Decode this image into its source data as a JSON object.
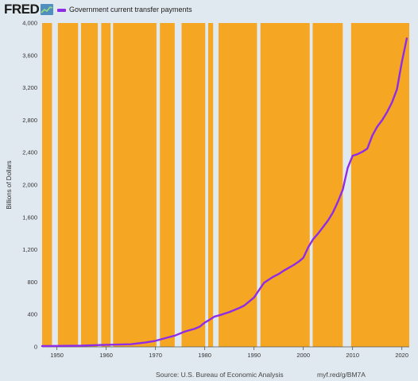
{
  "brand": {
    "logo_text": "FRED",
    "logo_icon": "line-chart-icon"
  },
  "colors": {
    "background": "#e1e9f0",
    "plot_bands": "#f5a623",
    "gap": "#e1e9f0",
    "series": "#8e2ce8"
  },
  "footer": {
    "source": "Source: U.S. Bureau of Economic Analysis",
    "shortlink": "myf.red/g/BM7A"
  },
  "chart_data": {
    "type": "line",
    "title": "",
    "xlabel": "",
    "ylabel": "Billions of Dollars",
    "xlim": [
      1947,
      2021.5
    ],
    "ylim": [
      0,
      4000
    ],
    "x_ticks": [
      "1950",
      "1960",
      "1970",
      "1980",
      "1990",
      "2000",
      "2010",
      "2020"
    ],
    "y_ticks": [
      "0",
      "400",
      "800",
      "1,200",
      "1,600",
      "2,000",
      "2,400",
      "2,800",
      "3,200",
      "3,600",
      "4,000"
    ],
    "legend": "top-left",
    "grid": false,
    "bands": [
      [
        1947.0,
        1949.0
      ],
      [
        1950.2,
        1954.3
      ],
      [
        1954.9,
        1958.3
      ],
      [
        1959.0,
        1960.9
      ],
      [
        1961.4,
        1970.2
      ],
      [
        1970.9,
        1973.9
      ],
      [
        1975.3,
        1980.1
      ],
      [
        1980.7,
        1981.7
      ],
      [
        1982.8,
        1990.6
      ],
      [
        1991.3,
        2001.3
      ],
      [
        2001.9,
        2008.0
      ],
      [
        2009.7,
        2021.5
      ]
    ],
    "series": [
      {
        "name": "Government current transfer payments",
        "x": [
          1947,
          1950,
          1955,
          1958,
          1960,
          1965,
          1968,
          1970,
          1972,
          1974,
          1976,
          1978,
          1979,
          1980,
          1981,
          1982,
          1983,
          1985,
          1987,
          1988,
          1990,
          1991,
          1992,
          1993,
          1994,
          1995,
          1996,
          1998,
          1999,
          2000,
          2001,
          2002,
          2003,
          2005,
          2006,
          2007,
          2008,
          2009,
          2010,
          2011,
          2012,
          2013,
          2014,
          2015,
          2016,
          2017,
          2018,
          2019,
          2020,
          2021
        ],
        "values": [
          10,
          12,
          15,
          22,
          25,
          32,
          55,
          75,
          108,
          140,
          190,
          225,
          250,
          300,
          335,
          375,
          390,
          430,
          480,
          510,
          610,
          700,
          790,
          830,
          870,
          900,
          940,
          1010,
          1050,
          1100,
          1230,
          1330,
          1400,
          1560,
          1660,
          1790,
          1940,
          2210,
          2360,
          2380,
          2410,
          2450,
          2610,
          2720,
          2800,
          2900,
          3020,
          3180,
          3520,
          3810
        ]
      }
    ]
  }
}
